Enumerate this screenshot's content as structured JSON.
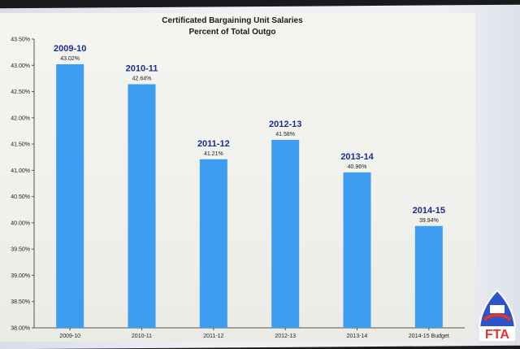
{
  "chart_data": {
    "type": "bar",
    "title": "Certificated Bargaining Unit Salaries",
    "subtitle": "Percent of Total Outgo",
    "categories": [
      "2009-10",
      "2010-11",
      "2011-12",
      "2012-13",
      "2013-14",
      "2014-15 Budget"
    ],
    "bar_headers": [
      "2009-10",
      "2010-11",
      "2011-12",
      "2012-13",
      "2013-14",
      "2014-15"
    ],
    "values": [
      43.02,
      42.64,
      41.21,
      41.58,
      40.96,
      39.94
    ],
    "data_labels": [
      "43.02%",
      "42.64%",
      "41.21%",
      "41.58%",
      "40.96%",
      "39.94%"
    ],
    "ylim": [
      38.0,
      43.5
    ],
    "yticks": [
      "38.00%",
      "38.50%",
      "39.00%",
      "39.50%",
      "40.00%",
      "40.50%",
      "41.00%",
      "41.50%",
      "42.00%",
      "42.50%",
      "43.00%",
      "43.50%"
    ],
    "grid": false,
    "bar_color": "#3d9df0",
    "header_color": "#1a2d8a"
  },
  "logo": {
    "text": "FTA",
    "colors": {
      "red": "#e0352b",
      "blue": "#2d55c9",
      "white": "#ffffff"
    }
  }
}
